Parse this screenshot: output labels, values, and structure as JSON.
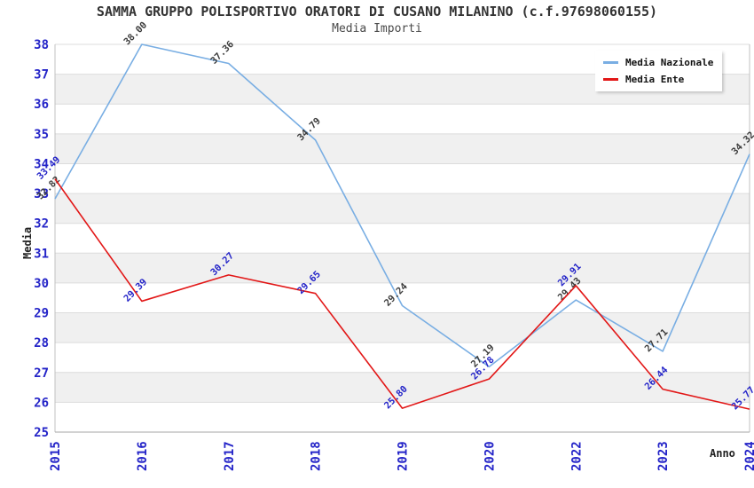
{
  "title": "SAMMA GRUPPO POLISPORTIVO ORATORI DI CUSANO MILANINO (c.f.97698060155)",
  "subtitle": "Media Importi",
  "chart_data": {
    "type": "line",
    "categories": [
      "2015",
      "2016",
      "2017",
      "2018",
      "2019",
      "2020",
      "2022",
      "2023",
      "2024"
    ],
    "series": [
      {
        "name": "Media Nazionale",
        "color": "#79aee3",
        "label_color": "#3c3c3c",
        "values": [
          32.82,
          38.0,
          37.36,
          34.79,
          29.24,
          27.19,
          29.43,
          27.71,
          34.32
        ]
      },
      {
        "name": "Media Ente",
        "color": "#e21717",
        "label_color": "#2424c8",
        "values": [
          33.49,
          29.39,
          30.27,
          29.65,
          25.8,
          26.78,
          29.91,
          26.44,
          25.77
        ]
      }
    ],
    "xlabel": "Anno",
    "ylabel": "Media",
    "ylim": [
      25,
      38
    ],
    "ytick_step": 1,
    "grid": "horizontal-bands",
    "legend_position": "top-right",
    "point_label_format": "2-decimals"
  },
  "colors": {
    "axis_tick_text": "#2424c8",
    "band_fill": "#f0f0f0",
    "grid_line": "#dcdcdc",
    "plot_border": "#c0c0c0",
    "bottom_axis": "#a6a6a6",
    "title_text": "#333333"
  }
}
